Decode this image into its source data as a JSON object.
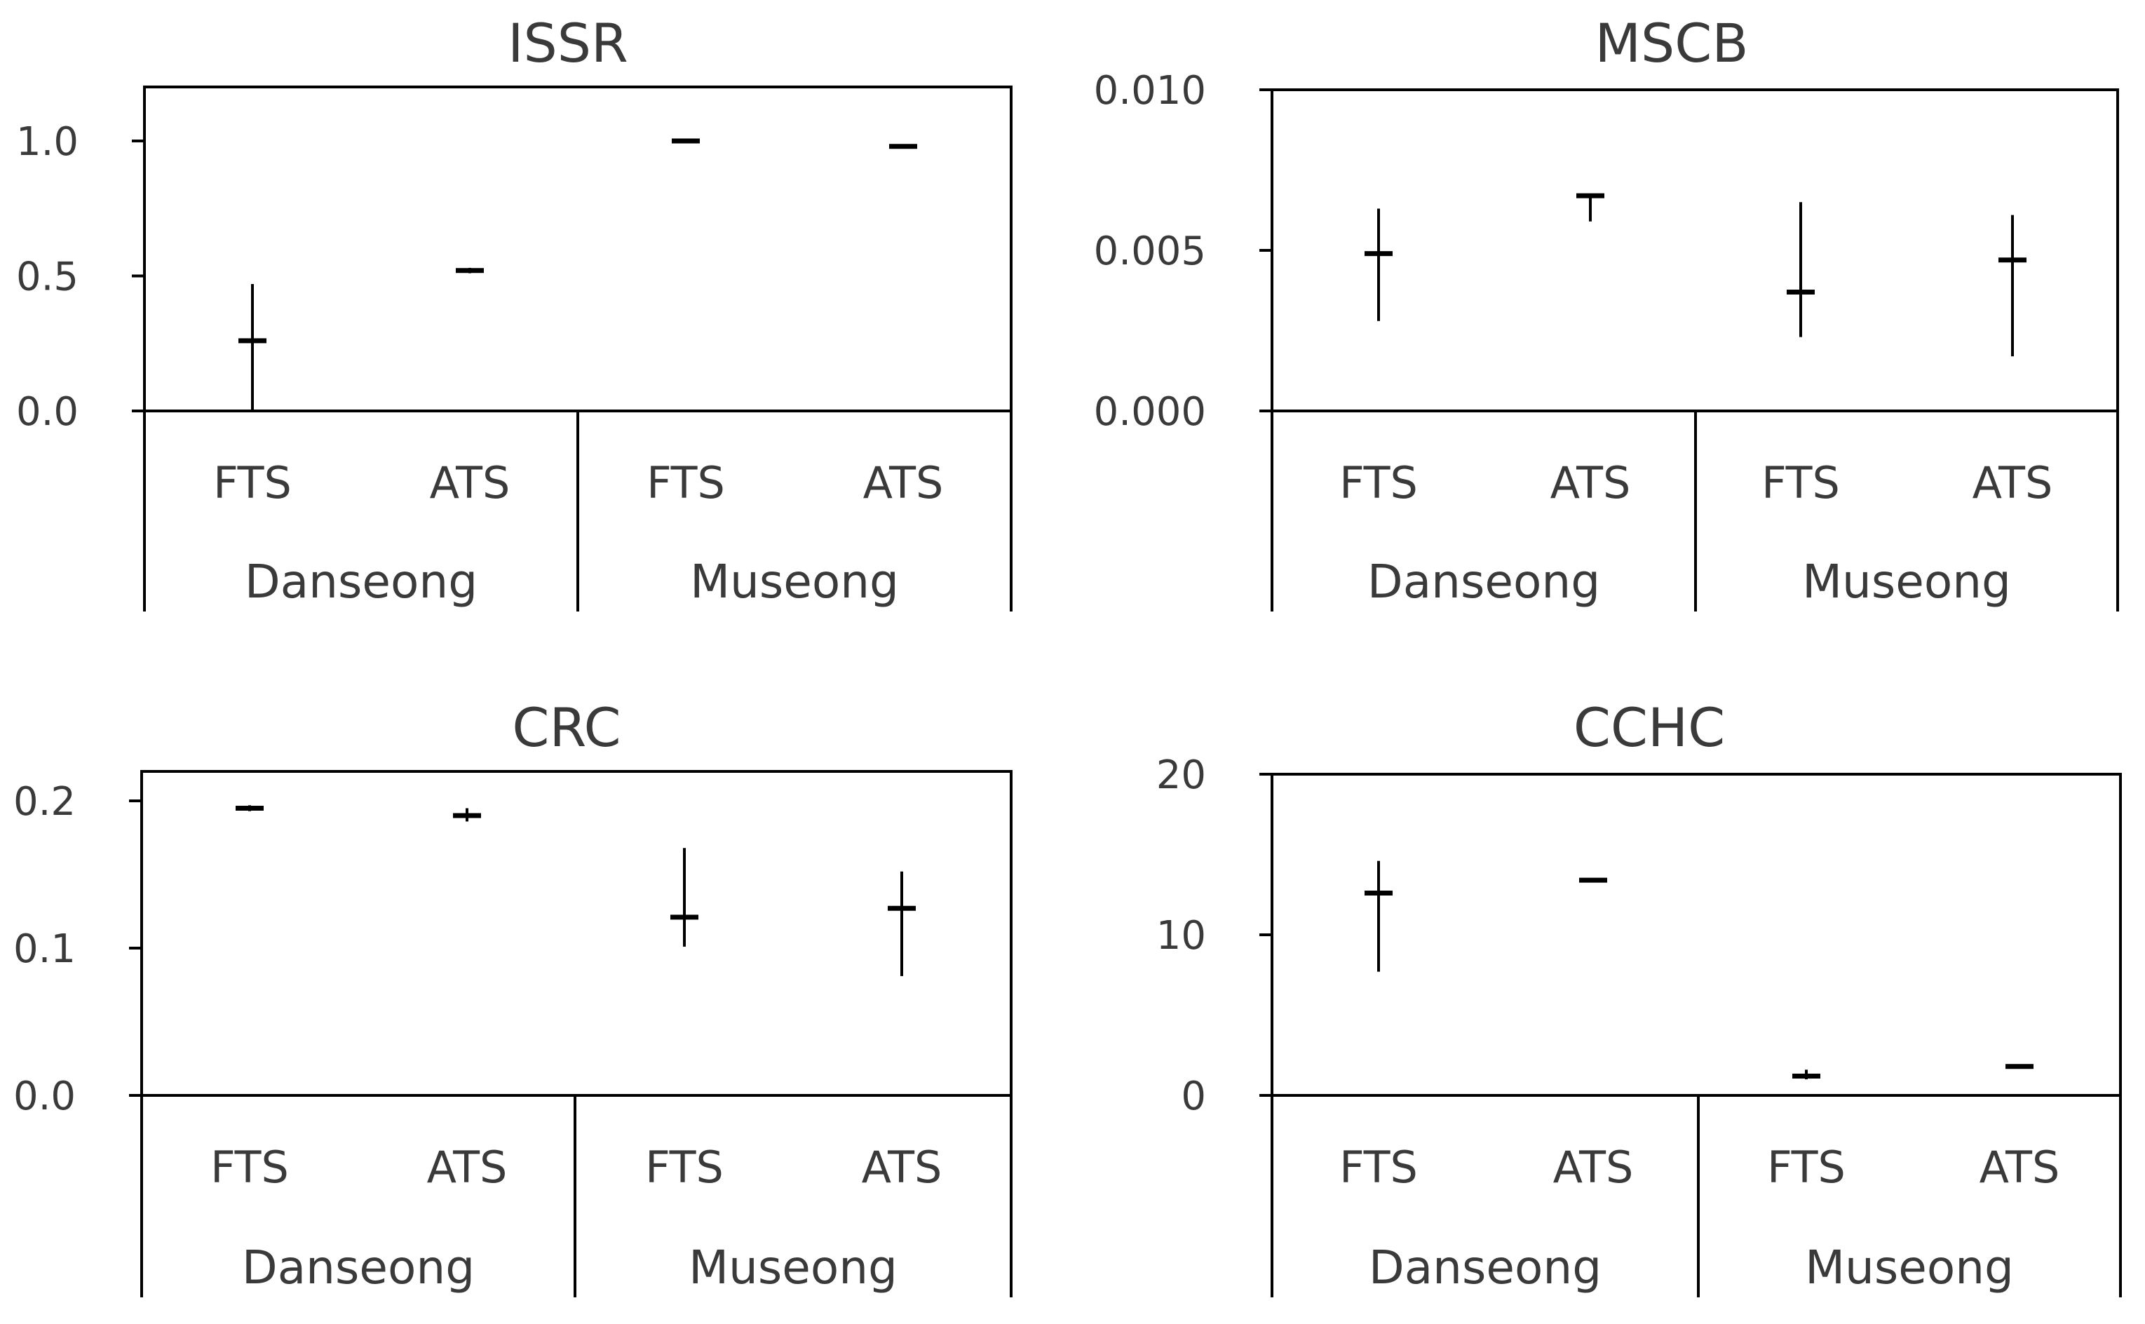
{
  "chart_data": [
    {
      "type": "scatter",
      "title": "ISSR",
      "ylim": [
        0,
        1.2
      ],
      "yticks": [
        "0.0",
        "0.5",
        "1.0"
      ],
      "tick_values": [
        0,
        0.5,
        1.0
      ],
      "categories": [
        "FTS",
        "ATS",
        "FTS",
        "ATS"
      ],
      "groups": [
        "Danseong",
        "Museong"
      ],
      "means": [
        0.26,
        0.52,
        1.0,
        0.98
      ],
      "lower": [
        0.0,
        0.51,
        0.995,
        0.975
      ],
      "upper": [
        0.47,
        0.53,
        1.005,
        0.985
      ],
      "grid": false
    },
    {
      "type": "scatter",
      "title": "MSCB",
      "ylim": [
        0,
        0.01
      ],
      "yticks": [
        "0.000",
        "0.005",
        "0.010"
      ],
      "tick_values": [
        0,
        0.005,
        0.01
      ],
      "categories": [
        "FTS",
        "ATS",
        "FTS",
        "ATS"
      ],
      "groups": [
        "Danseong",
        "Museong"
      ],
      "means": [
        0.0049,
        0.0067,
        0.0037,
        0.0047
      ],
      "lower": [
        0.0028,
        0.0059,
        0.0023,
        0.0017
      ],
      "upper": [
        0.0063,
        0.0067,
        0.0065,
        0.0061
      ],
      "grid": false
    },
    {
      "type": "scatter",
      "title": "CRC",
      "ylim": [
        0,
        0.22
      ],
      "yticks": [
        "0.0",
        "0.1",
        "0.2"
      ],
      "tick_values": [
        0,
        0.1,
        0.2
      ],
      "categories": [
        "FTS",
        "ATS",
        "FTS",
        "ATS"
      ],
      "groups": [
        "Danseong",
        "Museong"
      ],
      "means": [
        0.195,
        0.19,
        0.121,
        0.127
      ],
      "lower": [
        0.193,
        0.186,
        0.101,
        0.081
      ],
      "upper": [
        0.197,
        0.195,
        0.168,
        0.152
      ],
      "grid": false
    },
    {
      "type": "scatter",
      "title": "CCHC",
      "ylim": [
        0,
        20
      ],
      "yticks": [
        "0",
        "10",
        "20"
      ],
      "tick_values": [
        0,
        10,
        20
      ],
      "categories": [
        "FTS",
        "ATS",
        "FTS",
        "ATS"
      ],
      "groups": [
        "Danseong",
        "Museong"
      ],
      "means": [
        12.6,
        13.4,
        1.2,
        1.8
      ],
      "lower": [
        7.7,
        13.3,
        1.0,
        1.8
      ],
      "upper": [
        14.6,
        13.5,
        1.6,
        1.8
      ],
      "grid": false
    }
  ]
}
